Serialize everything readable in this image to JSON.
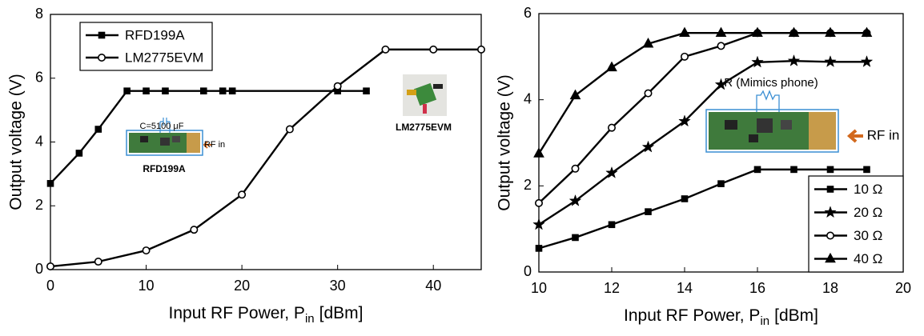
{
  "chart_data": [
    {
      "type": "line",
      "x_label": {
        "main": "Input RF Power, P",
        "sub": "in",
        "unit": "[dBm]"
      },
      "y_label": "Output voltage (V)",
      "xlim": [
        0,
        45
      ],
      "xticks": [
        0,
        10,
        20,
        30,
        40
      ],
      "ylim": [
        0,
        8
      ],
      "yticks": [
        0,
        2,
        4,
        6,
        8
      ],
      "legend": "upper left",
      "series": [
        {
          "name": "RFD199A",
          "color": "#000000",
          "marker": "square",
          "x": [
            0,
            3,
            5,
            8,
            10,
            12,
            16,
            18,
            19,
            30,
            33
          ],
          "values": [
            2.7,
            3.65,
            4.4,
            5.6,
            5.6,
            5.6,
            5.6,
            5.6,
            5.6,
            5.6,
            5.6
          ]
        },
        {
          "name": "LM2775EVM",
          "color": "#000000",
          "marker": "circle",
          "x": [
            0,
            5,
            10,
            15,
            20,
            25,
            30,
            35,
            40,
            45
          ],
          "values": [
            0.1,
            0.25,
            0.6,
            1.25,
            2.35,
            4.4,
            5.75,
            6.9,
            6.9,
            6.9
          ]
        }
      ],
      "annotations": [
        "C=5100 μF",
        "RF in",
        "RFD199A",
        "LM2775EVM"
      ]
    },
    {
      "type": "line",
      "x_label": {
        "main": "Input RF Power, P",
        "sub": "in",
        "unit": "[dBm]"
      },
      "y_label": "Output voltage (V)",
      "xlim": [
        10,
        20
      ],
      "xticks": [
        10,
        12,
        14,
        16,
        18,
        20
      ],
      "ylim": [
        0,
        6
      ],
      "yticks": [
        0,
        2,
        4,
        6
      ],
      "legend": "lower right",
      "series": [
        {
          "name": "10 Ω",
          "color": "#000000",
          "marker": "square",
          "x": [
            10,
            11,
            12,
            13,
            14,
            15,
            16,
            17,
            18,
            19
          ],
          "values": [
            0.55,
            0.8,
            1.1,
            1.4,
            1.7,
            2.05,
            2.38,
            2.38,
            2.38,
            2.38
          ]
        },
        {
          "name": "20 Ω",
          "color": "#000000",
          "marker": "star",
          "x": [
            10,
            11,
            12,
            13,
            14,
            15,
            16,
            17,
            18,
            19
          ],
          "values": [
            1.1,
            1.65,
            2.3,
            2.9,
            3.5,
            4.35,
            4.87,
            4.9,
            4.88,
            4.88
          ]
        },
        {
          "name": "30 Ω",
          "color": "#000000",
          "marker": "circle",
          "x": [
            10,
            11,
            12,
            13,
            14,
            15,
            16,
            17,
            18,
            19
          ],
          "values": [
            1.6,
            2.4,
            3.35,
            4.15,
            5.0,
            5.25,
            5.55,
            5.55,
            5.55,
            5.55
          ]
        },
        {
          "name": "40 Ω",
          "color": "#000000",
          "marker": "triangle",
          "x": [
            10,
            11,
            12,
            13,
            14,
            15,
            16,
            17,
            18,
            19
          ],
          "values": [
            2.75,
            4.1,
            4.75,
            5.3,
            5.55,
            5.55,
            5.55,
            5.55,
            5.55,
            5.55
          ]
        }
      ],
      "annotations": [
        "R (Mimics phone)",
        "RF in"
      ]
    }
  ]
}
